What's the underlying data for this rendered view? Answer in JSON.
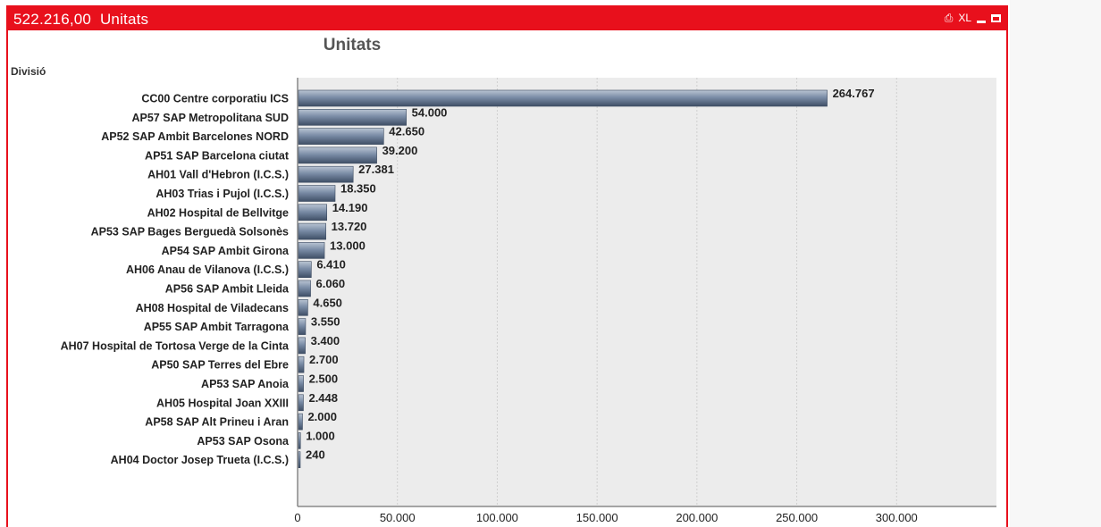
{
  "window": {
    "title_total": "522.216,00",
    "title_label": "Unitats",
    "icons": [
      "print-icon",
      "excel-icon",
      "minimize-icon",
      "maximize-icon"
    ],
    "excel_label": "XL"
  },
  "colors": {
    "accent": "#e8101c",
    "bar": "#6d7f99",
    "plot_bg": "#ececec"
  },
  "chart_data": {
    "type": "bar",
    "orientation": "horizontal",
    "title": "Unitats",
    "dimension_label": "Divisió",
    "categories": [
      "CC00 Centre corporatiu ICS",
      "AP57 SAP Metropolitana SUD",
      "AP52 SAP Ambit Barcelones NORD",
      "AP51 SAP Barcelona ciutat",
      "AH01 Vall d'Hebron (I.C.S.)",
      "AH03 Trias i Pujol (I.C.S.)",
      "AH02 Hospital de Bellvitge",
      "AP53 SAP Bages Berguedà Solsonès",
      "AP54 SAP Ambit Girona",
      "AH06 Anau de Vilanova (I.C.S.)",
      "AP56 SAP Ambit Lleida",
      "AH08 Hospital de Viladecans",
      "AP55 SAP Ambit Tarragona",
      "AH07 Hospital de Tortosa Verge de la Cinta",
      "AP50 SAP Terres del Ebre",
      "AP53 SAP Anoia",
      "AH05 Hospital Joan XXIII",
      "AP58 SAP Alt Prineu i Aran",
      "AP53 SAP Osona",
      "AH04 Doctor Josep Trueta (I.C.S.)"
    ],
    "values": [
      264767,
      54000,
      42650,
      39200,
      27381,
      18350,
      14190,
      13720,
      13000,
      6410,
      6060,
      4650,
      3550,
      3400,
      2700,
      2500,
      2448,
      2000,
      1000,
      240
    ],
    "value_labels": [
      "264.767",
      "54.000",
      "42.650",
      "39.200",
      "27.381",
      "18.350",
      "14.190",
      "13.720",
      "13.000",
      "6.410",
      "6.060",
      "4.650",
      "3.550",
      "3.400",
      "2.700",
      "2.500",
      "2.448",
      "2.000",
      "1.000",
      "240"
    ],
    "x_ticks": [
      0,
      50000,
      100000,
      150000,
      200000,
      250000,
      300000
    ],
    "x_tick_labels": [
      "0",
      "50.000",
      "100.000",
      "150.000",
      "200.000",
      "250.000",
      "300.000"
    ],
    "xlim": [
      0,
      350000
    ],
    "grid": true
  }
}
